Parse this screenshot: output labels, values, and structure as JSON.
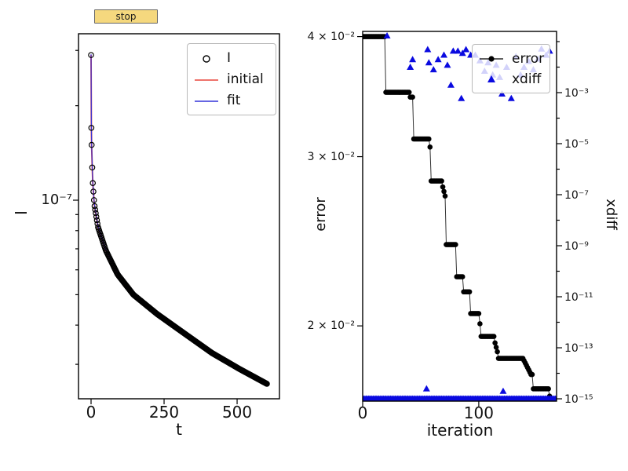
{
  "toolbar": {
    "stop_label": "stop",
    "button_color": "#f5d87e"
  },
  "chart_data": [
    {
      "type": "scatter",
      "xlabel": "t",
      "ylabel": "I",
      "xscale": "linear",
      "yscale": "log",
      "xlim": [
        -43,
        645
      ],
      "ylim": [
        2.33e-08,
        3.39e-07
      ],
      "x_ticks": [
        {
          "v": 0,
          "label": "0"
        },
        {
          "v": 250,
          "label": "250"
        },
        {
          "v": 500,
          "label": "500"
        }
      ],
      "y_major_ticks": [
        {
          "v": 1e-07,
          "label": "10⁻⁷"
        }
      ],
      "y_minor_ticks": [
        3e-07,
        2e-07,
        9e-08,
        8e-08,
        7e-08,
        6e-08,
        5e-08,
        4e-08,
        3e-08
      ],
      "legend": [
        {
          "label": "I",
          "marker": "circle"
        },
        {
          "label": "initial",
          "marker": "line"
        },
        {
          "label": "fit",
          "marker": "line"
        }
      ],
      "colors": {
        "points": "#000000",
        "initial": "#e8453c",
        "fit": "#3434d8"
      },
      "series_I_anchors": [
        [
          0,
          2.9e-07
        ],
        [
          1,
          1.7e-07
        ],
        [
          2,
          1.5e-07
        ],
        [
          5,
          1.17e-07
        ],
        [
          11,
          9.7e-08
        ],
        [
          24,
          8.2e-08
        ],
        [
          51,
          6.9e-08
        ],
        [
          91,
          5.8e-08
        ],
        [
          145,
          5e-08
        ],
        [
          226,
          4.34e-08
        ],
        [
          320,
          3.76e-08
        ],
        [
          414,
          3.26e-08
        ],
        [
          508,
          2.9e-08
        ],
        [
          602,
          2.6e-08
        ]
      ],
      "t_range": [
        0,
        602
      ],
      "sample_step": 2
    },
    {
      "type": "staircase+scatter",
      "xlabel": "iteration",
      "ylabel_left": "error",
      "ylabel_right": "xdiff",
      "xscale": "linear",
      "yscale_left": "log",
      "yscale_right": "log",
      "xlim": [
        0,
        167
      ],
      "ylim_left": [
        0.0167,
        0.0405
      ],
      "ylim_right": [
        8.1e-16,
        0.251
      ],
      "x_ticks": [
        {
          "v": 0,
          "label": "0"
        },
        {
          "v": 100,
          "label": "100"
        }
      ],
      "y_left_ticks": [
        {
          "v": 0.04,
          "label": "4 × 10⁻²"
        },
        {
          "v": 0.03,
          "label": "3 × 10⁻²"
        },
        {
          "v": 0.02,
          "label": "2 × 10⁻²"
        }
      ],
      "y_right_major_ticks": [
        {
          "v": 0.001,
          "label": "10⁻³"
        },
        {
          "v": 1e-05,
          "label": "10⁻⁵"
        },
        {
          "v": 1e-07,
          "label": "10⁻⁷"
        },
        {
          "v": 1e-09,
          "label": "10⁻⁹"
        },
        {
          "v": 1e-11,
          "label": "10⁻¹¹"
        },
        {
          "v": 1e-13,
          "label": "10⁻¹³"
        },
        {
          "v": 1e-15,
          "label": "10⁻¹⁵"
        }
      ],
      "y_right_minor_ticks": [
        0.1,
        0.01,
        0.0001,
        1e-06,
        1e-08,
        1e-10,
        1e-12,
        1e-14
      ],
      "legend": [
        {
          "label": "error"
        },
        {
          "label": "xdiff"
        }
      ],
      "colors": {
        "error": "#000000",
        "xdiff": "#0a0ae0"
      },
      "error_steps": [
        [
          0,
          19,
          0.04
        ],
        [
          20,
          40,
          0.035
        ],
        [
          41,
          43,
          0.0346
        ],
        [
          44,
          57,
          0.0313
        ],
        [
          58,
          58,
          0.0307
        ],
        [
          59,
          68,
          0.0283
        ],
        [
          69,
          69,
          0.0279
        ],
        [
          70,
          70,
          0.0276
        ],
        [
          71,
          71,
          0.0273
        ],
        [
          72,
          80,
          0.0243
        ],
        [
          81,
          86,
          0.0225
        ],
        [
          87,
          92,
          0.0217
        ],
        [
          93,
          100,
          0.0206
        ],
        [
          101,
          101,
          0.0201
        ],
        [
          102,
          113,
          0.0195
        ],
        [
          114,
          114,
          0.0192
        ],
        [
          115,
          115,
          0.019
        ],
        [
          116,
          116,
          0.0188
        ],
        [
          117,
          138,
          0.0185
        ],
        [
          139,
          139,
          0.0184
        ],
        [
          140,
          140,
          0.0183
        ],
        [
          141,
          141,
          0.0182
        ],
        [
          142,
          142,
          0.0181
        ],
        [
          143,
          143,
          0.018
        ],
        [
          144,
          144,
          0.0179
        ],
        [
          145,
          146,
          0.0178
        ],
        [
          147,
          160,
          0.0172
        ],
        [
          161,
          161,
          0.0169
        ],
        [
          162,
          162,
          0.0168
        ]
      ],
      "xdiff_points": [
        [
          21,
          0.17
        ],
        [
          41,
          0.01
        ],
        [
          43,
          0.02
        ],
        [
          56,
          0.049
        ],
        [
          57,
          0.015
        ],
        [
          61,
          0.008
        ],
        [
          65,
          0.02
        ],
        [
          70,
          0.03
        ],
        [
          73,
          0.012
        ],
        [
          76,
          0.002
        ],
        [
          78,
          0.043
        ],
        [
          82,
          0.043
        ],
        [
          85,
          0.0006
        ],
        [
          86,
          0.035
        ],
        [
          89,
          0.049
        ],
        [
          93,
          0.03
        ],
        [
          97,
          0.03
        ],
        [
          101,
          0.018
        ],
        [
          105,
          0.007
        ],
        [
          108,
          0.015
        ],
        [
          112,
          0.005
        ],
        [
          115,
          0.012
        ],
        [
          118,
          0.004
        ],
        [
          120,
          0.0009
        ],
        [
          124,
          0.01
        ],
        [
          128,
          0.0006
        ],
        [
          132,
          0.026
        ],
        [
          136,
          0.005
        ],
        [
          139,
          0.01
        ],
        [
          143,
          0.017
        ],
        [
          147,
          0.008
        ],
        [
          151,
          0.021
        ],
        [
          154,
          0.052
        ],
        [
          158,
          0.03
        ],
        [
          161,
          0.043
        ],
        [
          55,
          2.5e-15
        ],
        [
          121,
          2e-15
        ]
      ],
      "xdiff_baseline": {
        "value": 1e-15,
        "from": 0,
        "to": 166,
        "step": 1
      }
    }
  ]
}
